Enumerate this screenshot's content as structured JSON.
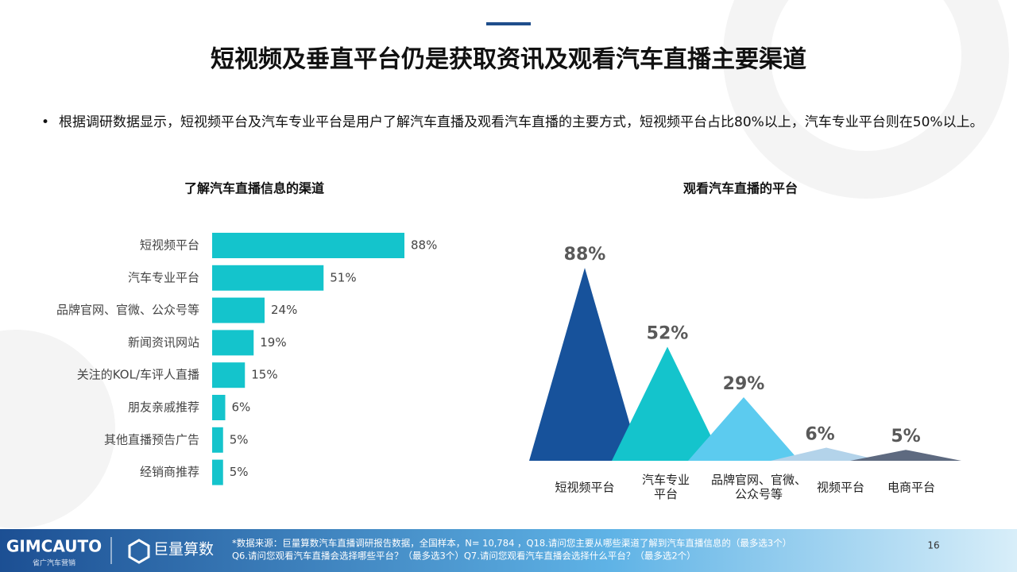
{
  "title": "短视频及垂直平台仍是获取资讯及观看汽车直播主要渠道",
  "bullet": "根据调研数据显示，短视频平台及汽车专业平台是用户了解汽车直播及观看汽车直播的主要方式，短视频平台占比80%以上，汽车专业平台则在50%以上。",
  "chart_data": [
    {
      "type": "hbar",
      "title": "了解汽车直播信息的渠道",
      "color": "#14c4cc",
      "categories": [
        "短视频平台",
        "汽车专业平台",
        "品牌官网、官微、公众号等",
        "新闻资讯网站",
        "关注的KOL/车评人直播",
        "朋友亲戚推荐",
        "其他直播预告广告",
        "经销商推荐"
      ],
      "values": [
        88,
        51,
        24,
        19,
        15,
        6,
        5,
        5
      ],
      "value_labels": [
        "88%",
        "51%",
        "24%",
        "19%",
        "15%",
        "6%",
        "5%",
        "5%"
      ]
    },
    {
      "type": "triangle",
      "title": "观看汽车直播的平台",
      "categories": [
        "短视频平台",
        "汽车专业\n平台",
        "品牌官网、官微、\n公众号等",
        "视频平台",
        "电商平台"
      ],
      "values": [
        88,
        52,
        29,
        6,
        5
      ],
      "value_labels": [
        "88%",
        "52%",
        "29%",
        "6%",
        "5%"
      ],
      "colors": [
        "#17529b",
        "#14c4cc",
        "#5ccbef",
        "#b3d3ea",
        "#5e6a80"
      ]
    }
  ],
  "footer": {
    "logo": "GIMCAUTO",
    "logo_sub": "省广汽车营销",
    "brand": "巨量算数",
    "source_1": "*数据来源：巨量算数汽车直播调研报告数据，全国样本，N= 10,784 ，Q18.请问您主要从哪些渠道了解到汽车直播信息的（最多选3个）",
    "source_2": "Q6.请问您观看汽车直播会选择哪些平台？（最多选3个）Q7.请问您观看汽车直播会选择什么平台？（最多选2个）",
    "page": "16"
  }
}
